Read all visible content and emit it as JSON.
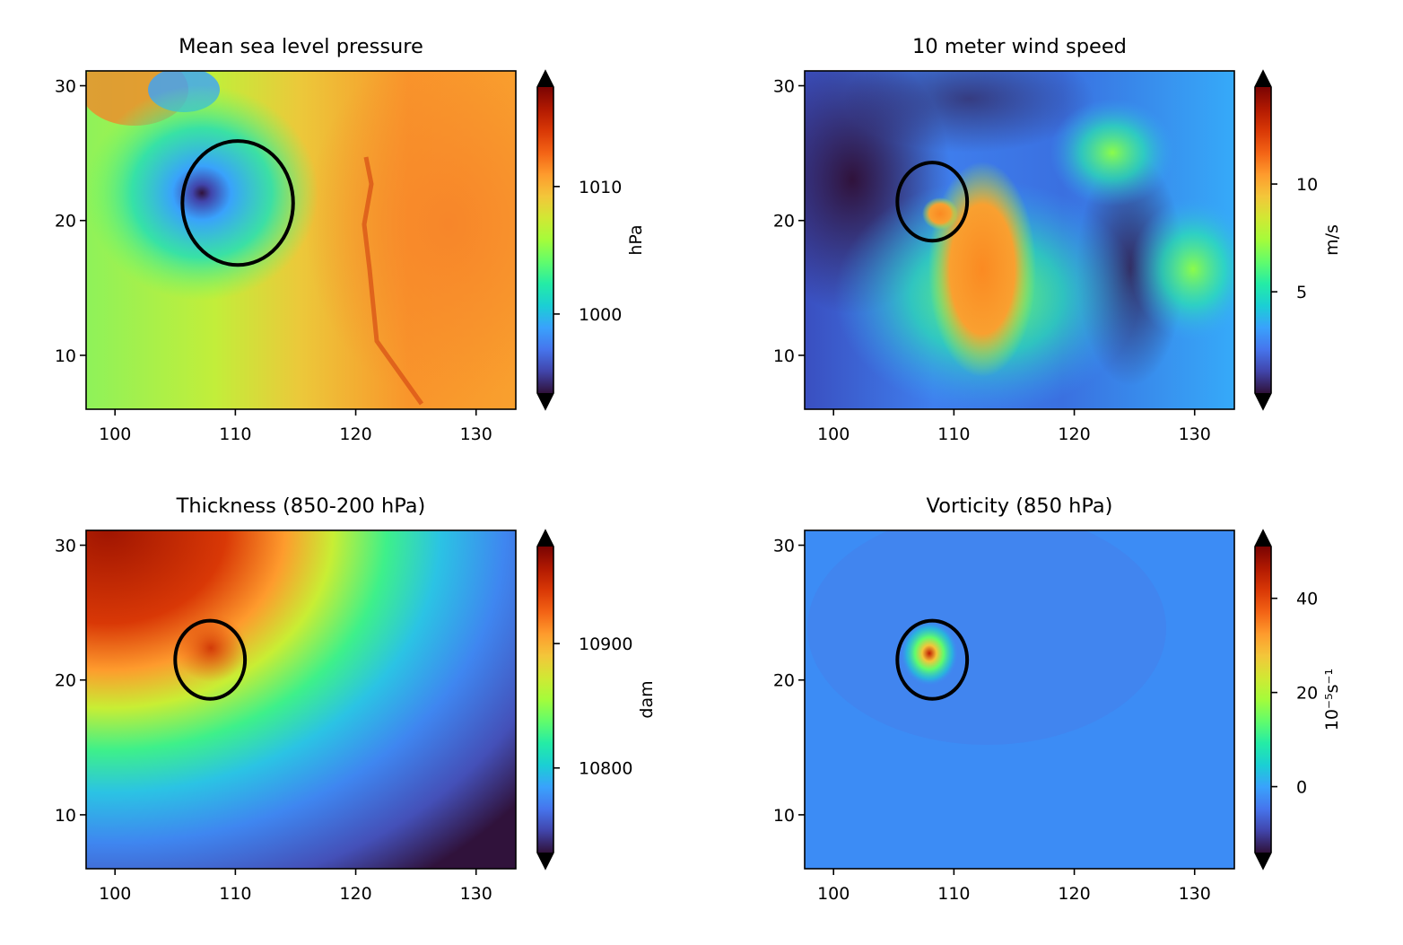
{
  "chart_data": [
    {
      "type": "heatmap",
      "title": "Mean sea level pressure",
      "xlim": [
        97.6,
        133.3
      ],
      "ylim": [
        6.0,
        31.1
      ],
      "xticks": [
        "100",
        "110",
        "120",
        "130"
      ],
      "yticks": [
        "10",
        "20",
        "30"
      ],
      "colorbar": {
        "label": "hPa",
        "ticks": [
          "1000",
          "1010"
        ],
        "range": [
          993.8,
          1017.8
        ],
        "colormap": "turbo",
        "extend": "both"
      },
      "circle": {
        "center_lon": 110.2,
        "center_lat": 21.3,
        "radius_deg": 4.6
      }
    },
    {
      "type": "heatmap",
      "title": "10 meter wind speed",
      "xlim": [
        97.6,
        133.3
      ],
      "ylim": [
        6.0,
        31.1
      ],
      "xticks": [
        "100",
        "110",
        "120",
        "130"
      ],
      "yticks": [
        "10",
        "20",
        "30"
      ],
      "colorbar": {
        "label": "m/s",
        "ticks": [
          "5",
          "10"
        ],
        "range": [
          0.3,
          14.5
        ],
        "colormap": "turbo",
        "extend": "both"
      },
      "circle": {
        "center_lon": 108.2,
        "center_lat": 21.4,
        "radius_deg": 2.9
      }
    },
    {
      "type": "heatmap",
      "title": "Thickness (850-200 hPa)",
      "xlim": [
        97.6,
        133.3
      ],
      "ylim": [
        6.0,
        31.1
      ],
      "xticks": [
        "100",
        "110",
        "120",
        "130"
      ],
      "yticks": [
        "10",
        "20",
        "30"
      ],
      "colorbar": {
        "label": "dam",
        "ticks": [
          "10800",
          "10900"
        ],
        "range": [
          10732,
          10978
        ],
        "colormap": "turbo",
        "extend": "both"
      },
      "circle": {
        "center_lon": 107.9,
        "center_lat": 21.5,
        "radius_deg": 2.9
      }
    },
    {
      "type": "heatmap",
      "title": "Vorticity (850 hPa)",
      "xlim": [
        97.6,
        133.3
      ],
      "ylim": [
        6.0,
        31.1
      ],
      "xticks": [
        "100",
        "110",
        "120",
        "130"
      ],
      "yticks": [
        "10",
        "20",
        "30"
      ],
      "colorbar": {
        "label": "10⁻⁵s⁻¹",
        "ticks": [
          "0",
          "20",
          "40"
        ],
        "range": [
          -14,
          51
        ],
        "colormap": "turbo",
        "extend": "both"
      },
      "circle": {
        "center_lon": 108.2,
        "center_lat": 21.5,
        "radius_deg": 2.9
      }
    }
  ]
}
